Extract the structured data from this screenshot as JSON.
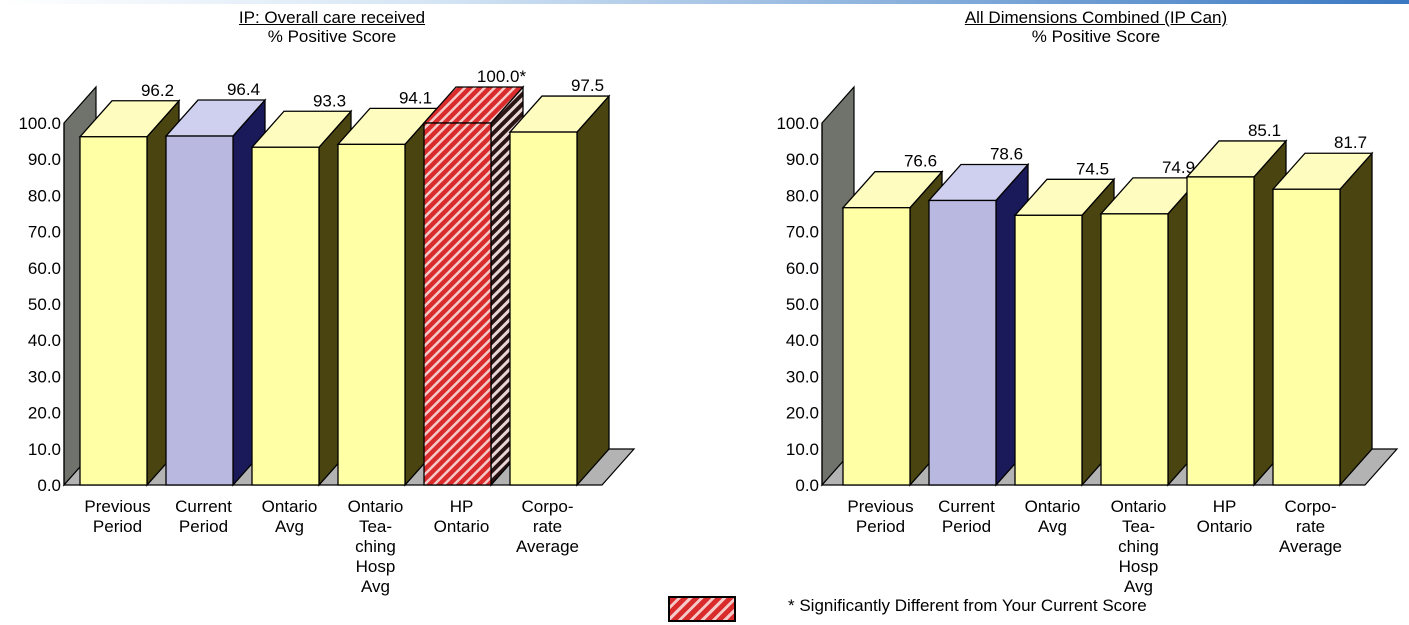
{
  "legend": {
    "text": "* Significantly Different from Your Current Score",
    "pattern_color": "#d92b2b"
  },
  "colors": {
    "yellow_face": "#ffffa6",
    "yellow_side": "#4a4410",
    "yellow_top": "#fffcc0",
    "lav_face": "#b8b8e0",
    "lav_side": "#1a1a5a",
    "lav_top": "#cfcff0",
    "red": "#d92b2b",
    "wall": "#6f736c",
    "floor": "#b3b3b3"
  },
  "chart_data": [
    {
      "type": "bar",
      "title": "IP: Overall care received",
      "subtitle": "% Positive Score",
      "categories": [
        [
          "Previous",
          "Period"
        ],
        [
          "Current",
          "Period"
        ],
        [
          "Ontario",
          "Avg"
        ],
        [
          "Ontario",
          "Tea-",
          "ching",
          "Hosp",
          "Avg"
        ],
        [
          "HP",
          "Ontario"
        ],
        [
          "Corpo-",
          "rate",
          "Average"
        ]
      ],
      "values": [
        96.2,
        96.4,
        93.3,
        94.1,
        100.0,
        97.5
      ],
      "value_labels": [
        "96.2",
        "96.4",
        "93.3",
        "94.1",
        "100.0*",
        "97.5"
      ],
      "styles": [
        "yellow",
        "lavender",
        "yellow",
        "yellow",
        "hatched-red",
        "yellow"
      ],
      "ylim": [
        0,
        100
      ],
      "yticks": [
        "0.0",
        "10.0",
        "20.0",
        "30.0",
        "40.0",
        "50.0",
        "60.0",
        "70.0",
        "80.0",
        "90.0",
        "100.0"
      ],
      "grid": false,
      "legend": "bottom"
    },
    {
      "type": "bar",
      "title": "All Dimensions Combined (IP Can)",
      "subtitle": "% Positive Score",
      "categories": [
        [
          "Previous",
          "Period"
        ],
        [
          "Current",
          "Period"
        ],
        [
          "Ontario",
          "Avg"
        ],
        [
          "Ontario",
          "Tea-",
          "ching",
          "Hosp",
          "Avg"
        ],
        [
          "HP",
          "Ontario"
        ],
        [
          "Corpo-",
          "rate",
          "Average"
        ]
      ],
      "values": [
        76.6,
        78.6,
        74.5,
        74.9,
        85.1,
        81.7
      ],
      "value_labels": [
        "76.6",
        "78.6",
        "74.5",
        "74.9",
        "85.1",
        "81.7"
      ],
      "styles": [
        "yellow",
        "lavender",
        "yellow",
        "yellow",
        "yellow",
        "yellow"
      ],
      "ylim": [
        0,
        100
      ],
      "yticks": [
        "0.0",
        "10.0",
        "20.0",
        "30.0",
        "40.0",
        "50.0",
        "60.0",
        "70.0",
        "80.0",
        "90.0",
        "100.0"
      ],
      "grid": false,
      "legend": "bottom"
    }
  ]
}
